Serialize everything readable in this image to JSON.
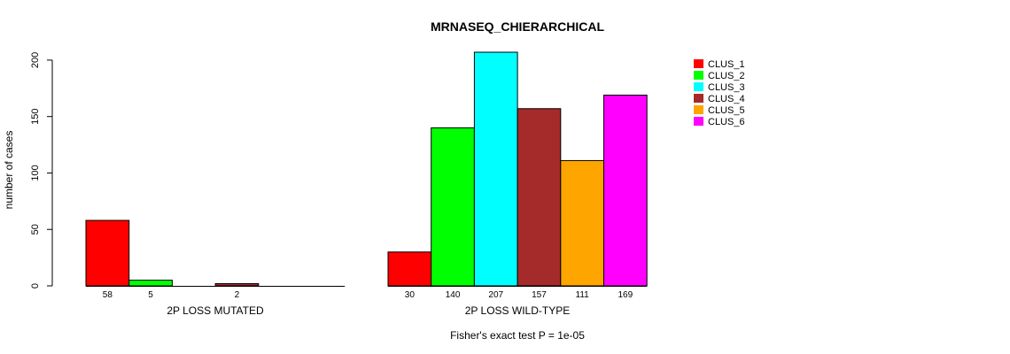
{
  "chart_data": {
    "type": "bar",
    "title": "MRNASEQ_CHIERARCHICAL",
    "ylabel": "number of cases",
    "ylim": [
      0,
      210
    ],
    "yticks": [
      0,
      50,
      100,
      150,
      200
    ],
    "footer": "Fisher's exact test P = 1e-05",
    "legend_position": "top-right",
    "series": [
      {
        "name": "CLUS_1",
        "color": "#FF0000"
      },
      {
        "name": "CLUS_2",
        "color": "#00FF00"
      },
      {
        "name": "CLUS_3",
        "color": "#00FFFF"
      },
      {
        "name": "CLUS_4",
        "color": "#A52A2A"
      },
      {
        "name": "CLUS_5",
        "color": "#FFA500"
      },
      {
        "name": "CLUS_6",
        "color": "#FF00FF"
      }
    ],
    "panels": [
      {
        "label": "2P LOSS MUTATED",
        "values": [
          58,
          5,
          0,
          2,
          0,
          0
        ],
        "count_labels": [
          "58",
          "5",
          "",
          "2",
          "",
          ""
        ]
      },
      {
        "label": "2P LOSS WILD-TYPE",
        "values": [
          30,
          140,
          207,
          157,
          111,
          169
        ],
        "count_labels": [
          "30",
          "140",
          "207",
          "157",
          "111",
          "169"
        ]
      }
    ]
  }
}
